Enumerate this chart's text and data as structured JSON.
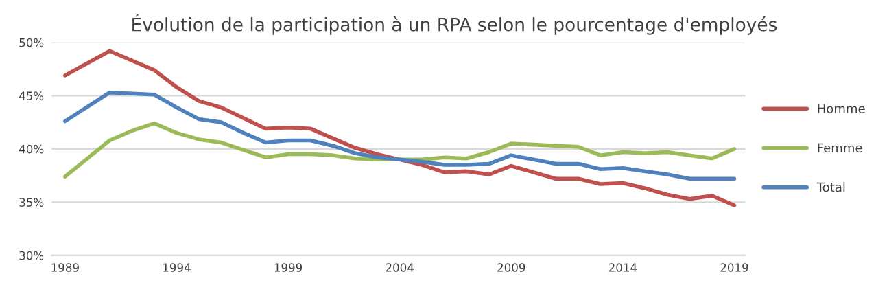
{
  "chart_data": {
    "type": "line",
    "title": "Évolution de la participation à un RPA selon le pourcentage d'employés",
    "x": [
      1989,
      1991,
      1992,
      1993,
      1994,
      1995,
      1996,
      1997,
      1998,
      1999,
      2000,
      2001,
      2002,
      2003,
      2004,
      2005,
      2006,
      2007,
      2008,
      2009,
      2010,
      2011,
      2012,
      2013,
      2014,
      2015,
      2016,
      2017,
      2018,
      2019
    ],
    "series": [
      {
        "name": "Homme",
        "color": "#c0504d",
        "values": [
          46.9,
          49.2,
          48.3,
          47.4,
          45.8,
          44.5,
          43.9,
          42.9,
          41.9,
          42.0,
          41.9,
          41.0,
          40.1,
          39.5,
          39.0,
          38.5,
          37.8,
          37.9,
          37.6,
          38.4,
          37.8,
          37.2,
          37.2,
          36.7,
          36.8,
          36.3,
          35.7,
          35.3,
          35.6,
          34.7
        ]
      },
      {
        "name": "Femme",
        "color": "#9bbb59",
        "values": [
          37.4,
          40.8,
          41.7,
          42.4,
          41.5,
          40.9,
          40.6,
          39.9,
          39.2,
          39.5,
          39.5,
          39.4,
          39.1,
          39.0,
          39.0,
          39.0,
          39.2,
          39.1,
          39.7,
          40.5,
          40.4,
          40.3,
          40.2,
          39.4,
          39.7,
          39.6,
          39.7,
          39.4,
          39.1,
          40.0
        ]
      },
      {
        "name": "Total",
        "color": "#4f81bd",
        "values": [
          42.6,
          45.3,
          45.2,
          45.1,
          43.9,
          42.8,
          42.5,
          41.5,
          40.6,
          40.8,
          40.8,
          40.3,
          39.6,
          39.2,
          39.0,
          38.8,
          38.5,
          38.5,
          38.6,
          39.4,
          39.0,
          38.6,
          38.6,
          38.1,
          38.2,
          37.9,
          37.6,
          37.2,
          37.2,
          37.2
        ]
      }
    ],
    "xlim": [
      1988.4,
      2019.5
    ],
    "xticks": [
      1989,
      1994,
      1999,
      2004,
      2009,
      2014,
      2019
    ],
    "ylim": [
      30,
      50
    ],
    "yticks": [
      {
        "value": 30,
        "label": "30%"
      },
      {
        "value": 35,
        "label": "35%"
      },
      {
        "value": 40,
        "label": "40%"
      },
      {
        "value": 45,
        "label": "45%"
      },
      {
        "value": 50,
        "label": "50%"
      }
    ],
    "grid": "y",
    "legend": "right",
    "line_style": "solid",
    "marker": "none"
  }
}
